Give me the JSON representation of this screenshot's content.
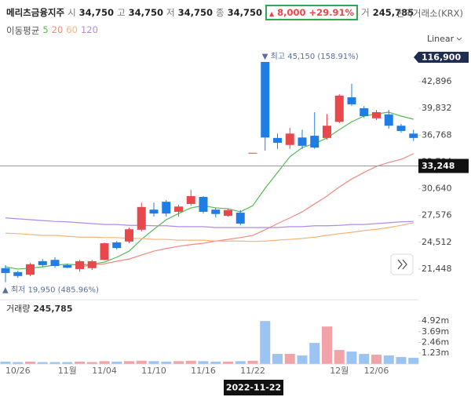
{
  "header": {
    "name": "메리츠금융지주",
    "fields": [
      {
        "label": "시",
        "value": "34,750"
      },
      {
        "label": "고",
        "value": "34,750"
      },
      {
        "label": "저",
        "value": "34,750"
      },
      {
        "label": "종",
        "value": "34,750"
      }
    ],
    "change": "8,000 +29.91%",
    "volume_label": "거",
    "volume": "245,785",
    "exchange": "한국거래소(KRX)"
  },
  "chart_data": [
    {
      "type": "candlestick",
      "categories": [
        null,
        "10/26",
        null,
        null,
        null,
        "11월",
        null,
        null,
        "11/04",
        null,
        null,
        null,
        "11/10",
        null,
        null,
        null,
        "11/16",
        null,
        null,
        null,
        "11/22",
        null,
        null,
        null,
        null,
        null,
        null,
        "12월",
        null,
        null,
        "12/06",
        null,
        null,
        null
      ],
      "open": [
        21550,
        21100,
        20800,
        22350,
        22500,
        21900,
        21450,
        21550,
        22500,
        24500,
        24600,
        25950,
        28250,
        29150,
        28000,
        28900,
        29700,
        28250,
        27550,
        27900,
        34750,
        45150,
        36450,
        35650,
        36500,
        36700,
        36450,
        38300,
        41100,
        39850,
        38700,
        39150,
        37850,
        36950
      ],
      "high": [
        21900,
        21250,
        22150,
        22600,
        22800,
        22050,
        22500,
        22500,
        24500,
        24650,
        26200,
        29050,
        29050,
        29350,
        28800,
        30500,
        29800,
        28450,
        28350,
        28200,
        34750,
        45150,
        36950,
        37600,
        37400,
        39400,
        39200,
        41450,
        42650,
        40100,
        39650,
        39650,
        38050,
        37400
      ],
      "low": [
        19950,
        20450,
        20650,
        21700,
        21600,
        21550,
        21150,
        21350,
        22450,
        23700,
        24400,
        25750,
        27450,
        27450,
        27450,
        28700,
        27800,
        27350,
        27450,
        26450,
        34750,
        35000,
        35200,
        35200,
        35200,
        35200,
        36250,
        38150,
        40100,
        38750,
        38500,
        37500,
        37050,
        36100
      ],
      "close": [
        21000,
        20650,
        22000,
        21900,
        21800,
        21600,
        22350,
        22350,
        24400,
        23850,
        26000,
        28550,
        27800,
        27800,
        28600,
        29800,
        28000,
        27750,
        28200,
        26650,
        34750,
        36500,
        35900,
        36950,
        35550,
        35350,
        37850,
        41300,
        40300,
        38950,
        39400,
        37850,
        37250,
        36450
      ],
      "up_color": "#e8474c",
      "down_color": "#1e7ee6",
      "up_volume_color": "#f2a3a8",
      "down_volume_color": "#9cc4f2",
      "ylim": [
        18300,
        46850
      ],
      "yticks": [
        {
          "value": 21448,
          "label": "21,448"
        },
        {
          "value": 24512,
          "label": "24,512"
        },
        {
          "value": 27576,
          "label": "27,576"
        },
        {
          "value": 30640,
          "label": "30,640"
        },
        {
          "value": 33704,
          "label": "33,704"
        },
        {
          "value": 36768,
          "label": "36,768"
        },
        {
          "value": 39832,
          "label": "39,832"
        },
        {
          "value": 42896,
          "label": "42,896"
        }
      ],
      "legend_title": "이동평균",
      "moving_averages": [
        {
          "name": "5",
          "color": "#55bb55",
          "values": [
            21700,
            21450,
            21550,
            21700,
            21900,
            22000,
            21900,
            22000,
            22250,
            22800,
            23500,
            24850,
            26000,
            27100,
            27800,
            28450,
            28700,
            28450,
            28350,
            28000,
            28700,
            30700,
            32500,
            34300,
            35350,
            35800,
            36450,
            37400,
            38300,
            38950,
            39200,
            39400,
            38950,
            38600
          ]
        },
        {
          "name": "20",
          "color": "#f08a80",
          "values": [
            null,
            null,
            null,
            null,
            null,
            null,
            21700,
            21900,
            22050,
            22350,
            22600,
            23050,
            23500,
            23800,
            24050,
            24250,
            24400,
            24650,
            24850,
            25050,
            25300,
            25950,
            26650,
            27300,
            28000,
            28900,
            29800,
            30850,
            31750,
            32500,
            33200,
            33650,
            34000,
            34650
          ]
        },
        {
          "name": "60",
          "color": "#f5b57a",
          "values": [
            25550,
            25500,
            25400,
            25300,
            25300,
            25200,
            25100,
            25100,
            25050,
            25050,
            24950,
            24950,
            24850,
            24850,
            24750,
            24750,
            24750,
            24650,
            24650,
            24650,
            24600,
            24650,
            24750,
            24850,
            24950,
            25100,
            25300,
            25500,
            25650,
            25850,
            26000,
            26200,
            26450,
            26750
          ]
        },
        {
          "name": "120",
          "color": "#b28ae8",
          "values": [
            27300,
            27200,
            27100,
            27000,
            26900,
            26850,
            26750,
            26650,
            26550,
            26550,
            26450,
            26450,
            26400,
            26400,
            26300,
            26300,
            26300,
            26200,
            26200,
            26200,
            26200,
            26200,
            26200,
            26300,
            26300,
            26400,
            26400,
            26450,
            26550,
            26550,
            26650,
            26750,
            26850,
            26900
          ]
        }
      ],
      "scale_label": "Linear",
      "max_label": "최고 45,150 (158.91%)",
      "min_label": "최저 19,950 (485.96%)",
      "price_tag": {
        "value": 116900,
        "label": "116,900"
      },
      "crosshair_price": {
        "value": 33248,
        "label": "33,248"
      },
      "crosshair_date": "2022-11-22"
    },
    {
      "type": "bar",
      "title": "거래량",
      "value_label": "245,785",
      "values": [
        0.25,
        0.2,
        0.25,
        0.2,
        0.2,
        0.2,
        0.25,
        0.2,
        0.3,
        0.25,
        0.3,
        0.35,
        0.3,
        0.25,
        0.3,
        0.35,
        0.3,
        0.25,
        0.25,
        0.3,
        0.35,
        4.92,
        1.14,
        1.14,
        0.96,
        2.4,
        4.29,
        1.59,
        1.41,
        1.14,
        1.05,
        0.96,
        0.78,
        0.69
      ],
      "ylim": [
        0,
        6.2
      ],
      "yticks": [
        {
          "value": 1.23,
          "label": "1.23m"
        },
        {
          "value": 2.46,
          "label": "2.46m"
        },
        {
          "value": 3.69,
          "label": "3.69m"
        },
        {
          "value": 4.92,
          "label": "4.92m"
        }
      ]
    }
  ]
}
